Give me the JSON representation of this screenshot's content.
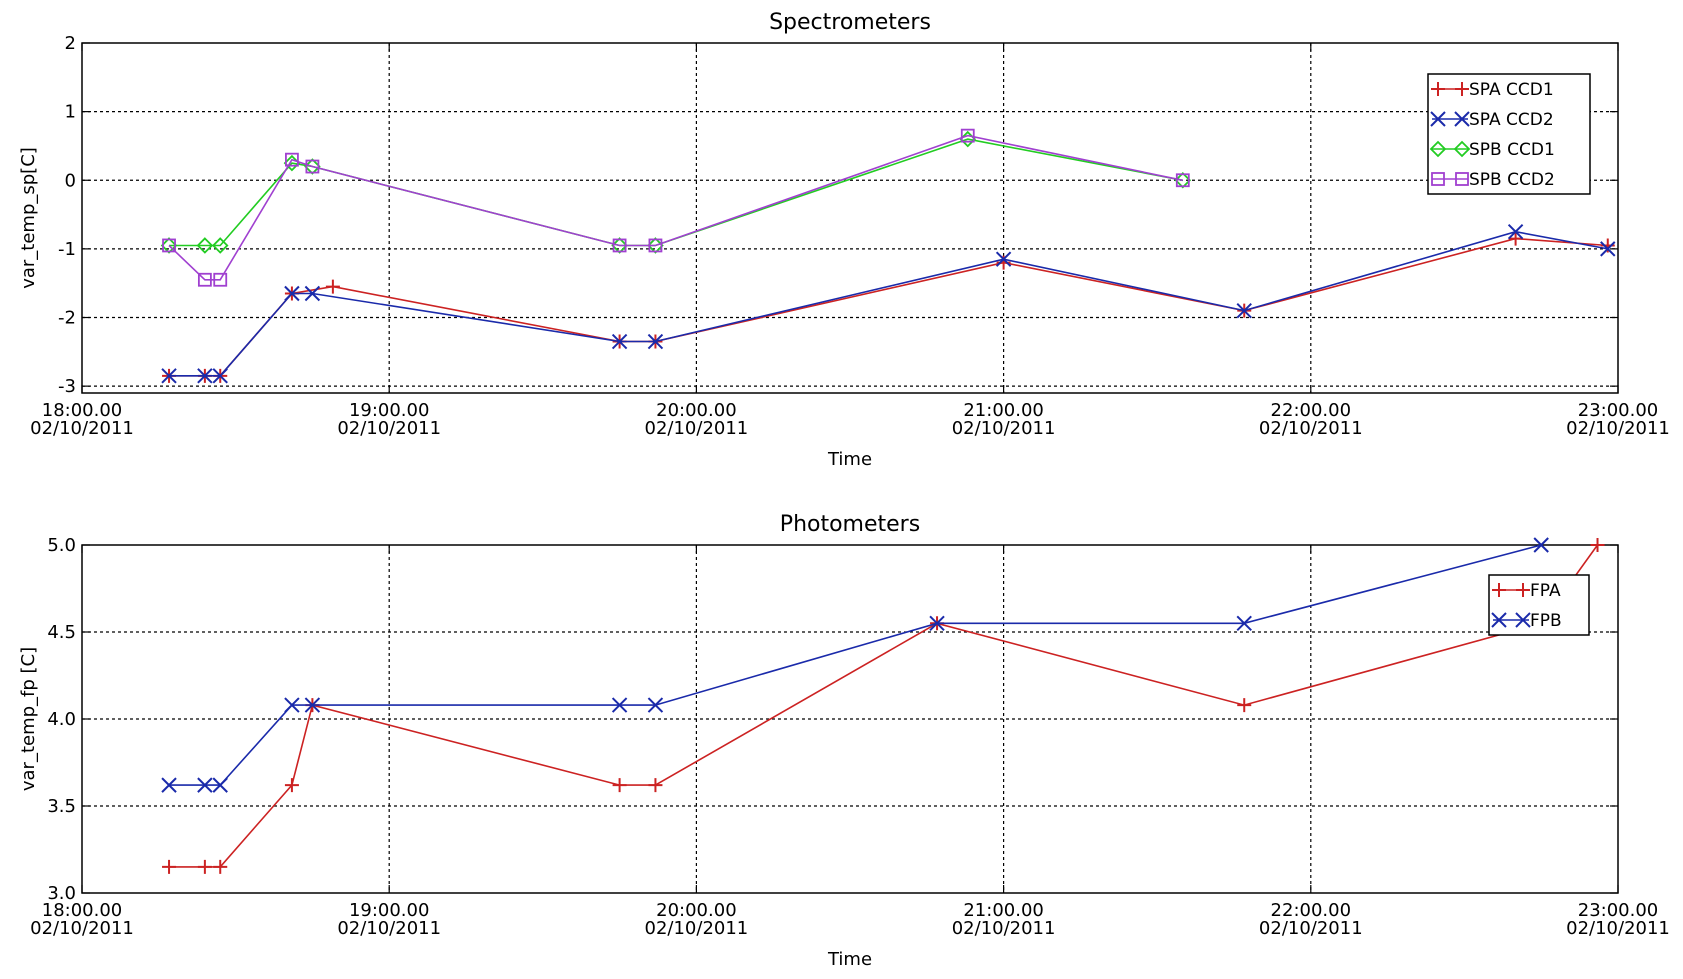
{
  "chart_data": [
    {
      "type": "line",
      "title": "Spectrometers",
      "xlabel": "Time",
      "ylabel": "var_temp_sp[C]",
      "ylim": [
        -3.1,
        2.0
      ],
      "yticks": [
        "2",
        "1",
        "0",
        "-1",
        "-2",
        "-3"
      ],
      "ytick_values": [
        2,
        1,
        0,
        -1,
        -2,
        -3
      ],
      "xlim": [
        0,
        300
      ],
      "xticks": [
        {
          "time": "18:00.00",
          "date": "02/10/2011",
          "value": 0
        },
        {
          "time": "19:00.00",
          "date": "02/10/2011",
          "value": 60
        },
        {
          "time": "20:00.00",
          "date": "02/10/2011",
          "value": 120
        },
        {
          "time": "21:00.00",
          "date": "02/10/2011",
          "value": 180
        },
        {
          "time": "22:00.00",
          "date": "02/10/2011",
          "value": 240
        },
        {
          "time": "23:00.00",
          "date": "02/10/2011",
          "value": 300
        }
      ],
      "grid": true,
      "legend": "top-right",
      "series": [
        {
          "name": "SPA CCD1",
          "color": "#cc2222",
          "marker": "plus",
          "x": [
            17,
            24,
            27,
            41,
            49,
            105,
            112,
            180,
            227,
            280,
            298
          ],
          "y": [
            -2.85,
            -2.85,
            -2.85,
            -1.65,
            -1.55,
            -2.35,
            -2.35,
            -1.2,
            -1.9,
            -0.85,
            -0.95
          ]
        },
        {
          "name": "SPA CCD2",
          "color": "#1a2aaa",
          "marker": "x",
          "x": [
            17,
            24,
            27,
            41,
            45,
            105,
            112,
            180,
            227,
            280,
            298
          ],
          "y": [
            -2.85,
            -2.85,
            -2.85,
            -1.65,
            -1.65,
            -2.35,
            -2.35,
            -1.15,
            -1.9,
            -0.75,
            -1.0
          ]
        },
        {
          "name": "SPB CCD1",
          "color": "#22cc22",
          "marker": "diamond",
          "x": [
            17,
            24,
            27,
            41,
            45,
            105,
            112,
            173,
            215
          ],
          "y": [
            -0.95,
            -0.95,
            -0.95,
            0.25,
            0.2,
            -0.95,
            -0.95,
            0.6,
            0.0
          ]
        },
        {
          "name": "SPB CCD2",
          "color": "#a040d0",
          "marker": "square",
          "x": [
            17,
            24,
            27,
            41,
            45,
            105,
            112,
            173,
            215
          ],
          "y": [
            -0.95,
            -1.45,
            -1.45,
            0.3,
            0.2,
            -0.95,
            -0.95,
            0.65,
            0.0
          ]
        }
      ]
    },
    {
      "type": "line",
      "title": "Photometers",
      "xlabel": "Time",
      "ylabel": "var_temp_fp [C]",
      "ylim": [
        3.0,
        5.0
      ],
      "yticks": [
        "5.0",
        "4.5",
        "4.0",
        "3.5",
        "3.0"
      ],
      "ytick_values": [
        5.0,
        4.5,
        4.0,
        3.5,
        3.0
      ],
      "xlim": [
        0,
        300
      ],
      "xticks": [
        {
          "time": "18:00.00",
          "date": "02/10/2011",
          "value": 0
        },
        {
          "time": "19:00.00",
          "date": "02/10/2011",
          "value": 60
        },
        {
          "time": "20:00.00",
          "date": "02/10/2011",
          "value": 120
        },
        {
          "time": "21:00.00",
          "date": "02/10/2011",
          "value": 180
        },
        {
          "time": "22:00.00",
          "date": "02/10/2011",
          "value": 240
        },
        {
          "time": "23:00.00",
          "date": "02/10/2011",
          "value": 300
        }
      ],
      "grid": true,
      "legend": "top-right",
      "series": [
        {
          "name": "FPA",
          "color": "#cc2222",
          "marker": "plus",
          "x": [
            17,
            24,
            27,
            41,
            45,
            105,
            112,
            167,
            227,
            285,
            296
          ],
          "y": [
            3.15,
            3.15,
            3.15,
            3.62,
            4.08,
            3.62,
            3.62,
            4.55,
            4.08,
            4.55,
            5.0
          ]
        },
        {
          "name": "FPB",
          "color": "#1a2aaa",
          "marker": "x",
          "x": [
            17,
            24,
            27,
            41,
            45,
            105,
            112,
            167,
            227,
            285
          ],
          "y": [
            3.62,
            3.62,
            3.62,
            4.08,
            4.08,
            4.08,
            4.08,
            4.55,
            4.55,
            5.0
          ]
        }
      ]
    }
  ]
}
